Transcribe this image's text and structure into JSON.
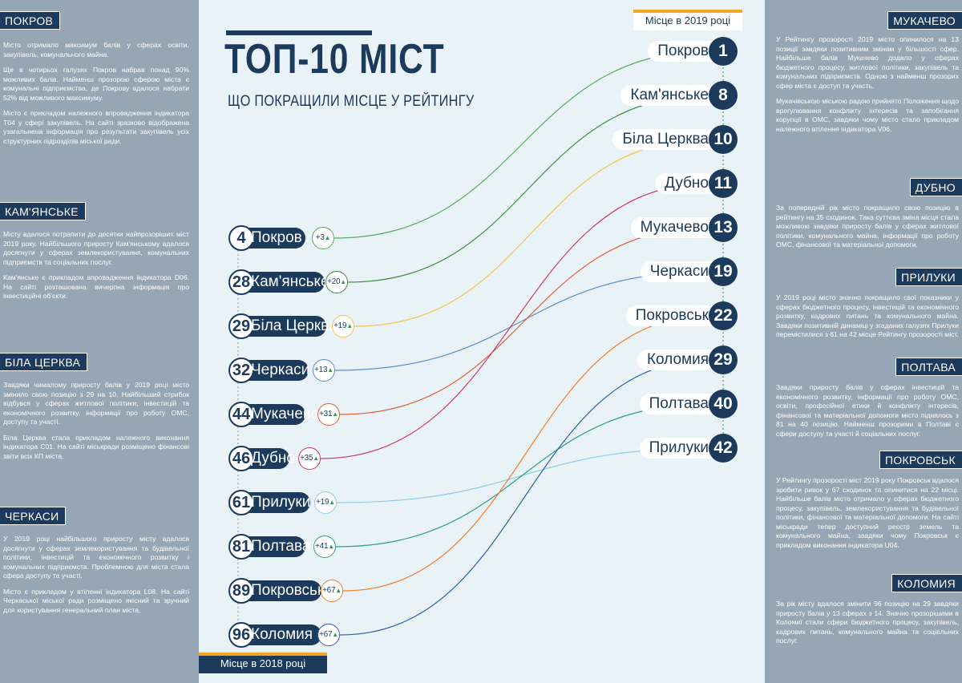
{
  "title": "ТОП-10 МІСТ",
  "subtitle": "ЩО ПОКРАЩИЛИ МІСЦЕ У РЕЙТИНГУ",
  "year_2019_label": "Місце в 2019 році",
  "year_2018_label": "Місце в 2018 році",
  "chart_data": {
    "type": "slope",
    "left_ranks": [
      {
        "rank": "4",
        "city": "Покров",
        "delta": "+3",
        "color": "#5aaa62"
      },
      {
        "rank": "28",
        "city": "Кам'янське",
        "delta": "+20",
        "color": "#3f8f3f"
      },
      {
        "rank": "29",
        "city": "Біла Церква",
        "delta": "+19",
        "color": "#f2c64b"
      },
      {
        "rank": "32",
        "city": "Черкаси",
        "delta": "+13",
        "color": "#5b8fd0"
      },
      {
        "rank": "44",
        "city": "Мукачево",
        "delta": "+31",
        "color": "#e0603a"
      },
      {
        "rank": "46",
        "city": "Дубно",
        "delta": "+35",
        "color": "#c83c70"
      },
      {
        "rank": "61",
        "city": "Прилуки",
        "delta": "+19",
        "color": "#8fcbe8"
      },
      {
        "rank": "81",
        "city": "Полтава",
        "delta": "+41",
        "color": "#2f9f8a"
      },
      {
        "rank": "89",
        "city": "Покровськ",
        "delta": "+67",
        "color": "#f07f2a"
      },
      {
        "rank": "96",
        "city": "Коломия",
        "delta": "+67",
        "color": "#2f5fa8"
      }
    ],
    "right_ranks": [
      {
        "rank": "1",
        "city": "Покров"
      },
      {
        "rank": "8",
        "city": "Кам'янське"
      },
      {
        "rank": "10",
        "city": "Біла Церква"
      },
      {
        "rank": "11",
        "city": "Дубно"
      },
      {
        "rank": "13",
        "city": "Мукачево"
      },
      {
        "rank": "19",
        "city": "Черкаси"
      },
      {
        "rank": "22",
        "city": "Покровськ"
      },
      {
        "rank": "29",
        "city": "Коломия"
      },
      {
        "rank": "40",
        "city": "Полтава"
      },
      {
        "rank": "42",
        "city": "Прилуки"
      }
    ]
  },
  "left_sections": [
    {
      "tag": "ПОКРОВ",
      "paras": [
        "Місто отримало максимум балів у сферах освіти, закупівель, комунального майна.",
        "Ще в чотирьох галузях Покров набрав понад 90% можливих балів. Найменш прозорою сферою міста є комунальні підприємства, де Покрову вдалося набрати 52% від можливого максимуму.",
        "Місто є прикладом належного впровадження індикатора T04 у сфері закупівель. На сайті зразково відображена узагальнена інформація про результати закупівель усіх структурних підрозділів міської ради."
      ]
    },
    {
      "tag": "КАМ'ЯНСЬКЕ",
      "paras": [
        "Місту вдалося потрапити до десятки найпрозоріших міст 2019 року. Найбільшого приросту Кам'янському вдалося досягнути у сферах землекористування, комунальних підприємств та соціальних послуг.",
        "Кам'янське є прикладом впровадження індикатора D06. На сайті розташована вичерпна інформація про інвестиційні об'єкти."
      ]
    },
    {
      "tag": "БІЛА ЦЕРКВА",
      "paras": [
        "Завдяки чималому приросту балів у 2019 році місто змінило свою позицію з 29 на 10. Найбільший стрибок відбувся у сферах житлової політики, інвестицій та економічного розвитку, інформації про роботу ОМС, доступу та участі.",
        "Біла Церква стала прикладом належного виконання індикатора C01. На сайті міськради розміщено фінансові звіти всіх КП міста."
      ]
    },
    {
      "tag": "ЧЕРКАСИ",
      "paras": [
        "У 2019 році найбільшого приросту місту вдалося досягнути у сферах землекористування та будівельної політики, інвестицій та економічного розвитку і комунальних підприємств. Проблемною для міста стала сфера доступу та участі.",
        "Місто є прикладом у втіленні індикатора L08. На сайті Черкаської міської ради розміщено якісний та зручний для користування генеральний план міста."
      ]
    }
  ],
  "right_sections": [
    {
      "tag": "МУКАЧЕВО",
      "paras": [
        "У Рейтингу прозорості 2019 місто опинилося на 13 позиції завдяки позитивним змінам у більшості сфер. Найбільше балів Мукачево додало у сферах бюджетного процесу, житлової політики, закупівель та комунальних підприємств. Одною з найменш прозорих сфер міста є доступ та участь.",
        "Мукачівською міською радою прийнято Положення щодо врегулювання конфлікту інтересів та запобігання корупції в ОМС, завдяки чому місто стало прикладом належного втілення індикатора V06."
      ]
    },
    {
      "tag": "ДУБНО",
      "paras": [
        "За попередній рік місто покращило свою позицію в рейтингу на 35 сходинок. Така суттєва зміна місця стала можливою завдяки приросту балів у сферах житлової політики, комунального майна, інформації про роботу ОМС, фінансової та матеріальної допомоги."
      ]
    },
    {
      "tag": "ПРИЛУКИ",
      "paras": [
        "У 2019 році місто значно покращило свої показники у сферах бюджетного процесу, інвестицій та економічного розвитку, кадрових питань та комунального майна. Завдяки позитивній динаміці у згаданих галузях Прилуки перемістилися з 61 на 42 місце Рейтингу прозорості міст."
      ]
    },
    {
      "tag": "ПОЛТАВА",
      "paras": [
        "Завдяки приросту балів у сферах інвестицій та економічного розвитку, інформації про роботу ОМС, освіти, професійної етики й конфлікту інтересів, фінансової та матеріальної допомоги місто піднялось з 81 на 40 позицію. Найменш прозорими в Полтаві є сфери доступу та участі й соціальних послуг."
      ]
    },
    {
      "tag": "ПОКРОВСЬК",
      "paras": [
        "У Рейтингу прозорості міст 2019 року Покровськ вдалося зробити ривок у 67 сходинок та опинитися на 22 місці. Найбільше балів місто отримало у сферах бюджетного процесу, закупівель, землекористування та будівельної політики, фінансової та матеріальної допомоги. На сайті міськради тепер доступний реєстр земель та комунального майна, завдяки чому Покровськ є прикладом виконання індикатора U04."
      ]
    },
    {
      "tag": "КОЛОМИЯ",
      "paras": [
        "За рік місту вдалося змінити 96 позицію на 29 завдяки приросту балів у 13 сферах з 14. Значно прозорішими в Коломиї стали сфери бюджетного процесу, закупівель, кадрових питань, комунального майна та соціальних послуг."
      ]
    }
  ]
}
